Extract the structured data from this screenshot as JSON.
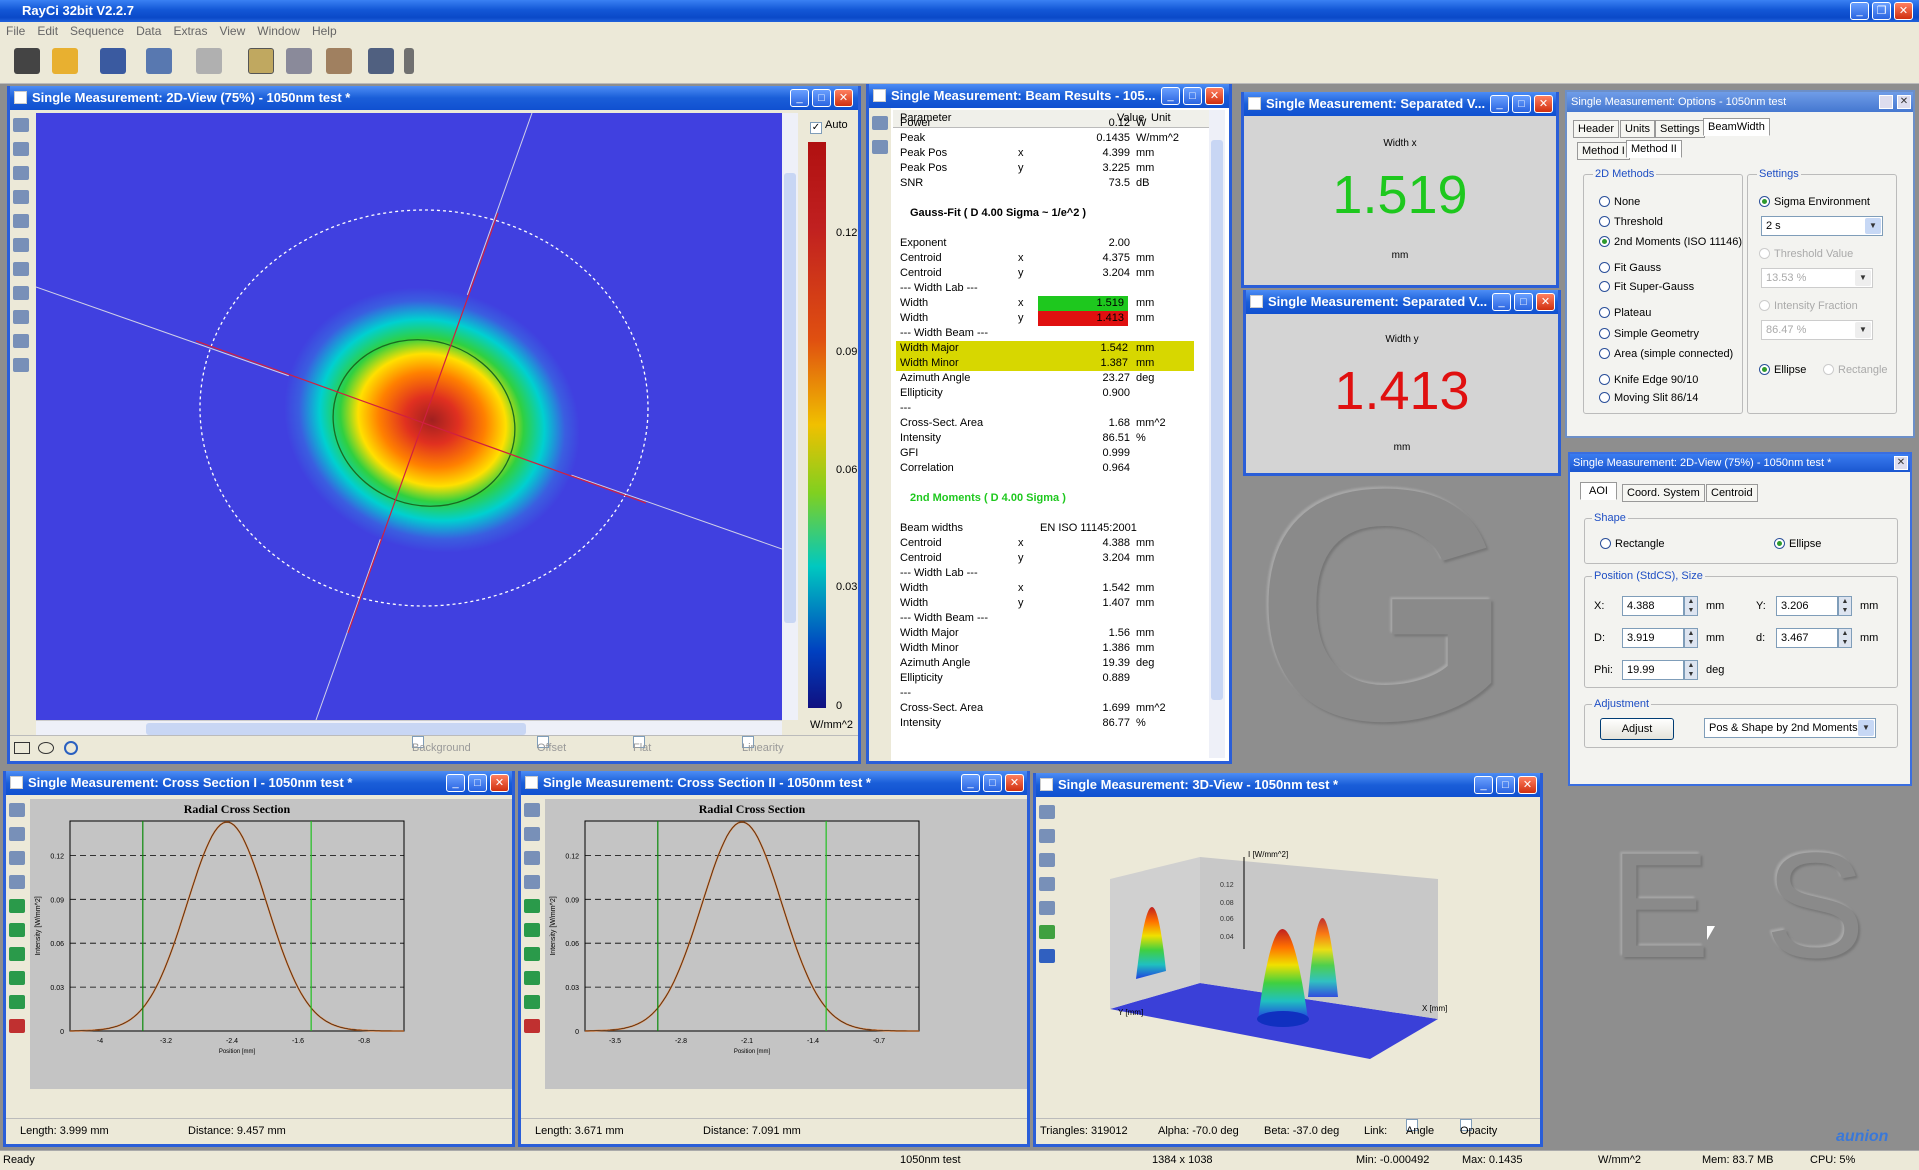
{
  "app": {
    "title": "RayCi 32bit V2.2.7"
  },
  "menu": [
    "File",
    "Edit",
    "Sequence",
    "Data",
    "Extras",
    "View",
    "Window",
    "Help"
  ],
  "colors": {
    "titlebar": "#1a5ed8",
    "beam_blue": "#4040e0",
    "green_value": "#1ec81e",
    "red_value": "#e01010",
    "highlight_yellow": "#d7d700"
  },
  "view2d": {
    "title": "Single Measurement: 2D-View (75%) - 1050nm test *",
    "auto_label": "Auto",
    "unit": "W/mm^2",
    "scale_ticks": [
      "0.12",
      "0.09",
      "0.06",
      "0.03",
      "0"
    ],
    "footer": {
      "background": "Background",
      "offset": "Offset",
      "flatfield": "Flat Field",
      "linearity": "Linearity"
    }
  },
  "results": {
    "title": "Single Measurement: Beam Results - 105...",
    "col_param": "Parameter",
    "col_value": "Value",
    "col_unit": "Unit",
    "rows": [
      {
        "p": "Power",
        "a": "",
        "v": "0.12",
        "u": "W"
      },
      {
        "p": "Peak",
        "a": "",
        "v": "0.1435",
        "u": "W/mm^2"
      },
      {
        "p": "Peak Pos",
        "a": "x",
        "v": "4.399",
        "u": "mm"
      },
      {
        "p": "Peak Pos",
        "a": "y",
        "v": "3.225",
        "u": "mm"
      },
      {
        "p": "SNR",
        "a": "",
        "v": "73.5",
        "u": "dB"
      },
      {
        "p": "",
        "a": "",
        "v": "",
        "u": ""
      },
      {
        "p": "Gauss-Fit ( D 4.00 Sigma ~ 1/e^2 )",
        "a": "",
        "v": "",
        "u": "",
        "h": "head"
      },
      {
        "p": "",
        "a": "",
        "v": "",
        "u": ""
      },
      {
        "p": "Exponent",
        "a": "",
        "v": "2.00",
        "u": ""
      },
      {
        "p": "Centroid",
        "a": "x",
        "v": "4.375",
        "u": "mm"
      },
      {
        "p": "Centroid",
        "a": "y",
        "v": "3.204",
        "u": "mm"
      },
      {
        "p": "--- Width Lab ---",
        "a": "",
        "v": "",
        "u": ""
      },
      {
        "p": "Width",
        "a": "x",
        "v": "1.519",
        "u": "mm",
        "h": "green"
      },
      {
        "p": "Width",
        "a": "y",
        "v": "1.413",
        "u": "mm",
        "h": "red"
      },
      {
        "p": "--- Width Beam ---",
        "a": "",
        "v": "",
        "u": ""
      },
      {
        "p": "Width Major",
        "a": "",
        "v": "1.542",
        "u": "mm",
        "h": "yellow"
      },
      {
        "p": "Width Minor",
        "a": "",
        "v": "1.387",
        "u": "mm",
        "h": "yellow"
      },
      {
        "p": "Azimuth Angle",
        "a": "",
        "v": "23.27",
        "u": "deg"
      },
      {
        "p": "Ellipticity",
        "a": "",
        "v": "0.900",
        "u": ""
      },
      {
        "p": "---",
        "a": "",
        "v": "",
        "u": ""
      },
      {
        "p": "Cross-Sect. Area",
        "a": "",
        "v": "1.68",
        "u": "mm^2"
      },
      {
        "p": "Intensity",
        "a": "",
        "v": "86.51",
        "u": "%"
      },
      {
        "p": "GFI",
        "a": "",
        "v": "0.999",
        "u": ""
      },
      {
        "p": "Correlation",
        "a": "",
        "v": "0.964",
        "u": ""
      },
      {
        "p": "",
        "a": "",
        "v": "",
        "u": ""
      },
      {
        "p": "2nd Moments ( D 4.00 Sigma  )",
        "a": "",
        "v": "",
        "u": "",
        "h": "greenhead"
      },
      {
        "p": "",
        "a": "",
        "v": "",
        "u": ""
      },
      {
        "p": "Beam widths",
        "a": "",
        "v": "EN ISO 11145:2001",
        "u": ""
      },
      {
        "p": "Centroid",
        "a": "x",
        "v": "4.388",
        "u": "mm"
      },
      {
        "p": "Centroid",
        "a": "y",
        "v": "3.204",
        "u": "mm"
      },
      {
        "p": "--- Width Lab ---",
        "a": "",
        "v": "",
        "u": ""
      },
      {
        "p": "Width",
        "a": "x",
        "v": "1.542",
        "u": "mm"
      },
      {
        "p": "Width",
        "a": "y",
        "v": "1.407",
        "u": "mm"
      },
      {
        "p": "--- Width Beam ---",
        "a": "",
        "v": "",
        "u": ""
      },
      {
        "p": "Width Major",
        "a": "",
        "v": "1.56",
        "u": "mm"
      },
      {
        "p": "Width Minor",
        "a": "",
        "v": "1.386",
        "u": "mm"
      },
      {
        "p": "Azimuth Angle",
        "a": "",
        "v": "19.39",
        "u": "deg"
      },
      {
        "p": "Ellipticity",
        "a": "",
        "v": "0.889",
        "u": ""
      },
      {
        "p": "---",
        "a": "",
        "v": "",
        "u": ""
      },
      {
        "p": "Cross-Sect. Area",
        "a": "",
        "v": "1.699",
        "u": "mm^2"
      },
      {
        "p": "Intensity",
        "a": "",
        "v": "86.77",
        "u": "%"
      }
    ]
  },
  "sepx": {
    "title": "Single Measurement: Separated V...",
    "label": "Width x",
    "value": "1.519",
    "unit": "mm"
  },
  "sepy": {
    "title": "Single Measurement: Separated V...",
    "label": "Width y",
    "value": "1.413",
    "unit": "mm"
  },
  "options": {
    "title": "Single Measurement: Options - 1050nm test",
    "tabs": [
      "Header",
      "Units",
      "Settings",
      "BeamWidth"
    ],
    "subtabs": [
      "Method I",
      "Method II"
    ],
    "methods_label": "2D Methods",
    "methods": [
      "None",
      "Threshold",
      "2nd Moments (ISO 11146)",
      "Fit Gauss",
      "Fit Super-Gauss",
      "Plateau",
      "Simple Geometry",
      "Area (simple connected)",
      "Knife Edge 90/10",
      "Moving Slit 86/14"
    ],
    "settings_label": "Settings",
    "sigma_env": "Sigma Environment",
    "sigma_value": "2 s",
    "threshold_label": "Threshold Value",
    "threshold_value": "13.53 %",
    "intensity_label": "Intensity Fraction",
    "intensity_value": "86.47 %",
    "ellipse": "Ellipse",
    "rectangle": "Rectangle"
  },
  "aoi": {
    "title": "Single Measurement: 2D-View (75%) - 1050nm test *",
    "tabs": [
      "AOI",
      "Coord. System",
      "Centroid"
    ],
    "shape_label": "Shape",
    "rect": "Rectangle",
    "ellipse": "Ellipse",
    "pos_label": "Position (StdCS), Size",
    "x_label": "X:",
    "x": "4.388",
    "y_label": "Y:",
    "y": "3.206",
    "D_label": "D:",
    "D": "3.919",
    "d_label": "d:",
    "d": "3.467",
    "phi_label": "Phi:",
    "phi": "19.99",
    "unit_mm": "mm",
    "unit_deg": "deg",
    "adj_label": "Adjustment",
    "adjust": "Adjust",
    "mode": "Pos & Shape by 2nd Moments"
  },
  "cs1": {
    "title": "Single Measurement: Cross Section I - 1050nm test *",
    "plot_title": "Radial Cross Section",
    "ylabel": "Intensity [W/mm^2]",
    "xlabel": "Position [mm]",
    "yticks": [
      "0.12",
      "0.09",
      "0.06",
      "0.03",
      "0"
    ],
    "xticks": [
      "-4",
      "-3.2",
      "-2.4",
      "-1.6",
      "-0.8"
    ],
    "length": "Length:  3.999 mm",
    "distance": "Distance: 9.457 mm"
  },
  "cs2": {
    "title": "Single Measurement: Cross Section II - 1050nm test *",
    "plot_title": "Radial Cross Section",
    "ylabel": "Intensity [W/mm^2]",
    "xlabel": "Position [mm]",
    "yticks": [
      "0.12",
      "0.09",
      "0.06",
      "0.03",
      "0"
    ],
    "xticks": [
      "-3.5",
      "-2.8",
      "-2.1",
      "-1.4",
      "-0.7"
    ],
    "length": "Length:  3.671 mm",
    "distance": "Distance: 7.091 mm"
  },
  "v3d": {
    "title": "Single Measurement: 3D-View - 1050nm test *",
    "zlabel": "I [W/mm^2]",
    "zticks": [
      "0.12",
      "0.08",
      "0.06",
      "0.04"
    ],
    "xaxis": "X [mm]",
    "yaxis": "Y [mm]",
    "triangles": "Triangles:  319012",
    "alpha": "Alpha: -70.0 deg",
    "beta": "Beta: -37.0 deg",
    "link": "Link:",
    "angle": "Angle",
    "opacity": "Opacity"
  },
  "bg_letters": [
    "G",
    "E",
    "S"
  ],
  "watermark": "aunion",
  "status": {
    "ready": "Ready",
    "name": "1050nm test",
    "res": "1384 x 1038",
    "min": "Min: -0.000492",
    "max": "Max: 0.1435",
    "unit": "W/mm^2",
    "mem": "Mem: 83.7 MB",
    "cpu": "CPU:  5%"
  }
}
